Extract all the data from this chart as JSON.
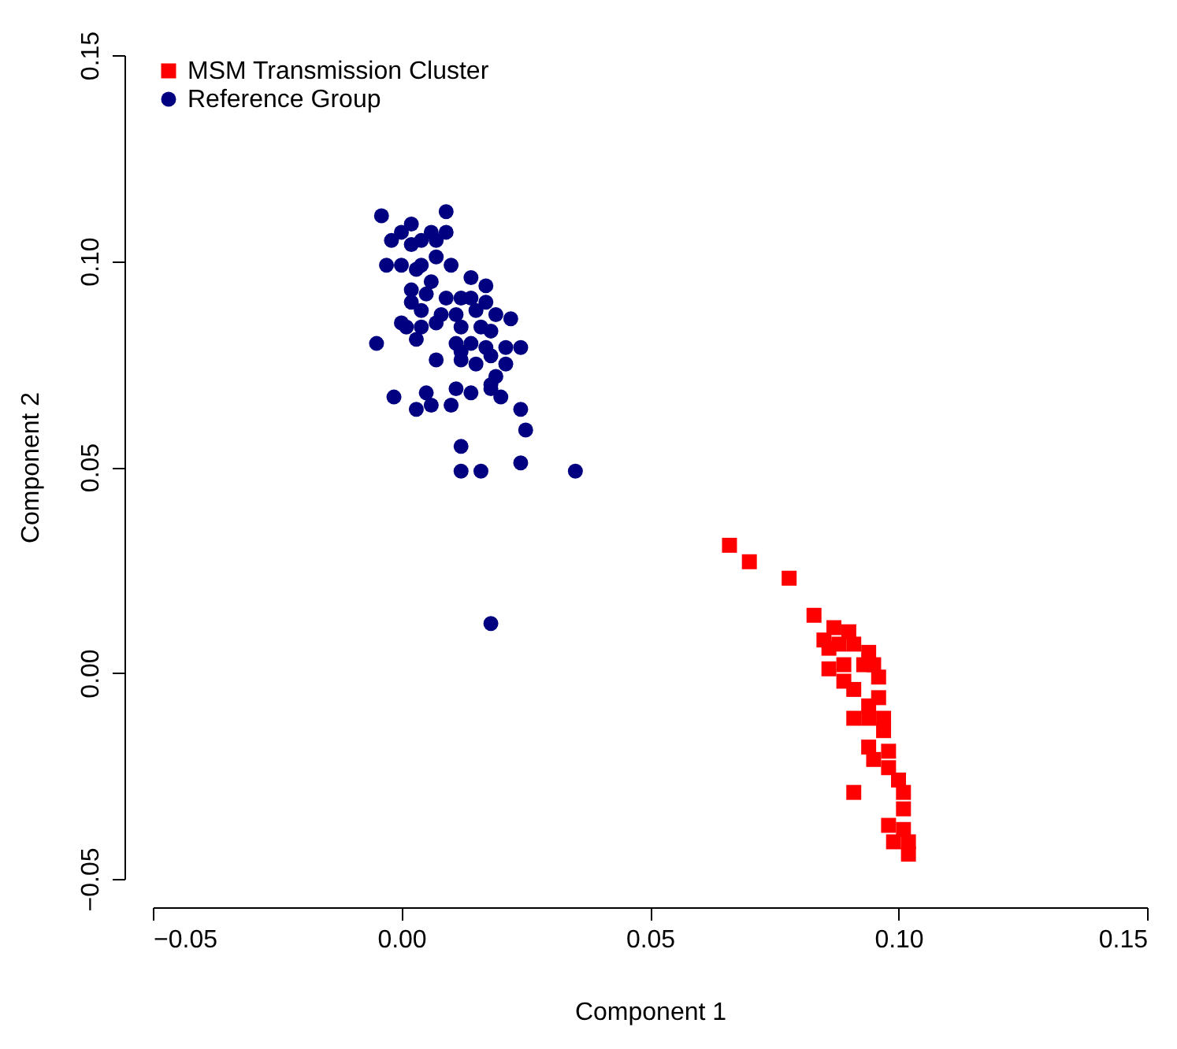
{
  "chart_data": {
    "type": "scatter",
    "xlabel": "Component 1",
    "ylabel": "Component 2",
    "xlim": [
      -0.05,
      0.15
    ],
    "xticks": [
      {
        "value": -0.05,
        "label": "−0.05"
      },
      {
        "value": 0.0,
        "label": "0.00"
      },
      0.05,
      {
        "value": 0.1,
        "label": "0.10"
      },
      0.15
    ],
    "ylim": [
      -0.05,
      0.15
    ],
    "yticks": [
      {
        "value": -0.05,
        "label": "−0.05"
      },
      {
        "value": 0.0,
        "label": "0.00"
      },
      0.05,
      {
        "value": 0.1,
        "label": "0.10"
      },
      0.15
    ],
    "grid": false,
    "legend": "top left",
    "series": [
      {
        "name": "MSM Transmission Cluster",
        "color": "#ff0000",
        "marker": "square",
        "x": [
          0.066,
          0.07,
          0.078,
          0.083,
          0.087,
          0.09,
          0.085,
          0.086,
          0.088,
          0.091,
          0.094,
          0.086,
          0.089,
          0.093,
          0.095,
          0.089,
          0.091,
          0.096,
          0.096,
          0.094,
          0.091,
          0.094,
          0.097,
          0.097,
          0.094,
          0.095,
          0.098,
          0.098,
          0.1,
          0.091,
          0.101,
          0.101,
          0.098,
          0.101,
          0.102,
          0.102,
          0.099
        ],
        "values": [
          0.031,
          0.027,
          0.023,
          0.014,
          0.011,
          0.01,
          0.008,
          0.006,
          0.007,
          0.007,
          0.005,
          0.001,
          0.002,
          0.002,
          0.002,
          -0.002,
          -0.004,
          -0.001,
          -0.006,
          -0.008,
          -0.011,
          -0.011,
          -0.011,
          -0.014,
          -0.018,
          -0.021,
          -0.019,
          -0.023,
          -0.026,
          -0.029,
          -0.029,
          -0.033,
          -0.037,
          -0.038,
          -0.041,
          -0.044,
          -0.041
        ]
      },
      {
        "name": "Reference Group",
        "color": "#000080",
        "marker": "circle",
        "x": [
          -0.004,
          0.009,
          0.002,
          0.0,
          -0.002,
          0.004,
          0.007,
          0.009,
          0.006,
          0.002,
          -0.003,
          0.0,
          0.003,
          0.004,
          0.007,
          0.01,
          0.006,
          0.014,
          0.017,
          0.002,
          0.005,
          0.002,
          0.004,
          0.009,
          0.012,
          0.014,
          0.017,
          0.008,
          0.011,
          0.015,
          0.019,
          0.022,
          0.0,
          0.001,
          0.007,
          0.012,
          0.016,
          0.018,
          0.004,
          -0.005,
          0.003,
          0.011,
          0.014,
          0.017,
          0.021,
          0.024,
          0.012,
          0.018,
          0.007,
          0.012,
          0.015,
          0.021,
          0.019,
          0.018,
          -0.0015,
          0.005,
          0.011,
          0.014,
          0.018,
          0.02,
          0.003,
          0.006,
          0.01,
          0.024,
          0.025,
          0.012,
          0.024,
          0.012,
          0.016,
          0.035,
          0.018
        ],
        "values": [
          0.111,
          0.112,
          0.109,
          0.107,
          0.105,
          0.105,
          0.105,
          0.107,
          0.107,
          0.104,
          0.099,
          0.099,
          0.098,
          0.099,
          0.101,
          0.099,
          0.095,
          0.096,
          0.094,
          0.093,
          0.092,
          0.09,
          0.088,
          0.091,
          0.091,
          0.091,
          0.09,
          0.087,
          0.087,
          0.088,
          0.087,
          0.086,
          0.085,
          0.084,
          0.085,
          0.084,
          0.084,
          0.083,
          0.084,
          0.08,
          0.081,
          0.08,
          0.08,
          0.079,
          0.079,
          0.079,
          0.078,
          0.077,
          0.076,
          0.076,
          0.075,
          0.075,
          0.072,
          0.07,
          0.067,
          0.068,
          0.069,
          0.068,
          0.069,
          0.067,
          0.064,
          0.065,
          0.065,
          0.064,
          0.059,
          0.055,
          0.051,
          0.049,
          0.049,
          0.049,
          0.012
        ]
      }
    ]
  }
}
